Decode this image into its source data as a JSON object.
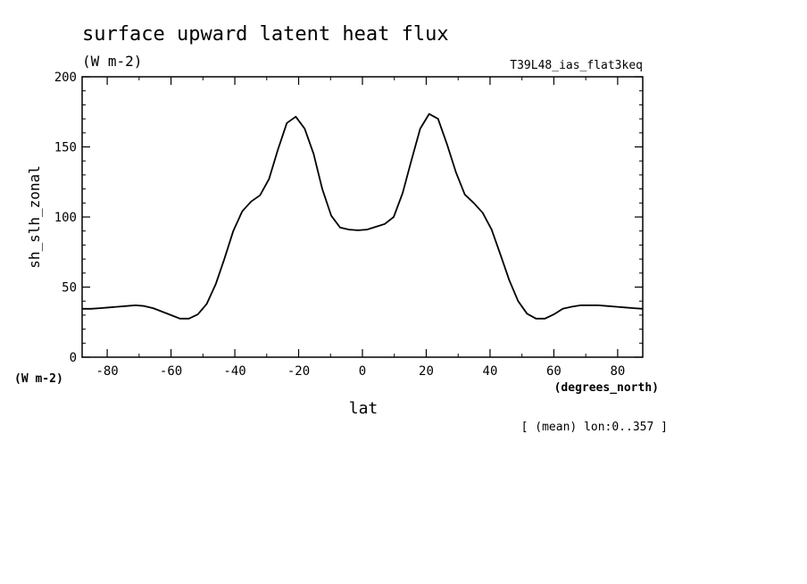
{
  "chart_data": {
    "type": "line",
    "title": "surface upward latent heat flux",
    "subtitle": "(W m-2)",
    "run_label": "T39L48_ias_flat3keq",
    "xlabel": "lat",
    "xunits": "(degrees_north)",
    "ylabel": "sh_slh_zonal",
    "yunits": "(W m-2)",
    "footnote": "[ (mean) lon:0..357 ]",
    "xlim": [
      -87.86,
      87.86
    ],
    "ylim": [
      0,
      200
    ],
    "xticks": [
      -80,
      -60,
      -40,
      -20,
      0,
      20,
      40,
      60,
      80
    ],
    "yticks": [
      0,
      50,
      100,
      150,
      200
    ],
    "line_color": "#000000",
    "grid": false,
    "x": [
      -87.86,
      -85.1,
      -82.3,
      -79.5,
      -76.7,
      -73.9,
      -71.1,
      -68.4,
      -65.6,
      -62.8,
      -60.0,
      -57.2,
      -54.4,
      -51.6,
      -48.8,
      -46.0,
      -43.3,
      -40.5,
      -37.7,
      -34.9,
      -32.1,
      -29.3,
      -26.5,
      -23.7,
      -20.9,
      -18.1,
      -15.3,
      -12.6,
      -9.8,
      -7.0,
      -4.2,
      -1.4,
      1.4,
      4.2,
      7.0,
      9.8,
      12.6,
      15.3,
      18.1,
      20.9,
      23.7,
      26.5,
      29.3,
      32.1,
      34.9,
      37.7,
      40.5,
      43.3,
      46.0,
      48.8,
      51.6,
      54.4,
      57.2,
      60.0,
      62.8,
      65.6,
      68.4,
      71.1,
      73.9,
      76.7,
      79.5,
      82.3,
      85.1,
      87.86
    ],
    "y": [
      34.5,
      34.5,
      35,
      35.5,
      36,
      36.5,
      37,
      36.5,
      35,
      32.5,
      30,
      27.5,
      27.5,
      30.5,
      38,
      52,
      70,
      90,
      104,
      111,
      115.5,
      127,
      148,
      167,
      171.5,
      163,
      145,
      120,
      101,
      92.5,
      91,
      90.5,
      91,
      93,
      95,
      100,
      117,
      140,
      163,
      173.5,
      170,
      152,
      132,
      116,
      110,
      103,
      91,
      73,
      55,
      40,
      31,
      27.5,
      27.5,
      30.5,
      34.5,
      36,
      37,
      37,
      37,
      36.5,
      36,
      35.5,
      35,
      34.5
    ]
  }
}
